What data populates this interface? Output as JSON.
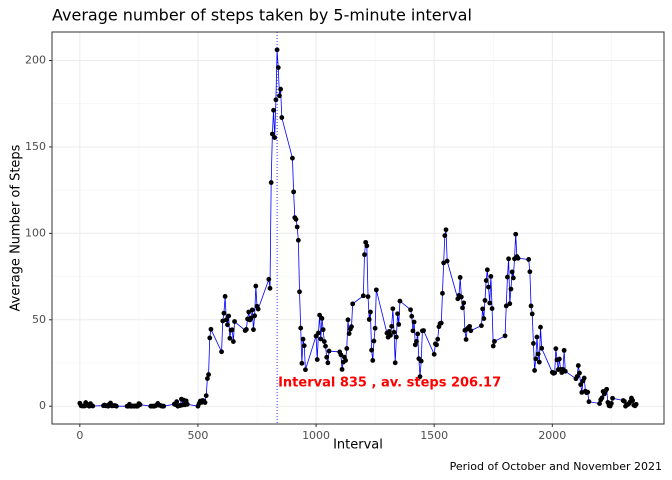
{
  "chart_data": {
    "type": "line",
    "title": "Average number of steps taken by 5-minute interval",
    "x_label": "Interval",
    "y_label": "Average Number of Steps",
    "caption": "Period of October and November 2021",
    "annotation": "Interval 835 , av. steps  206.17",
    "vline_x": 835,
    "vline_color": "#0000ff",
    "annotation_color": "#ff0000",
    "line_color": "#0000ff",
    "point_color": "#000000",
    "grid": true,
    "xlim": [
      -117.75,
      2472.75
    ],
    "ylim": [
      -10.3,
      216.5
    ],
    "xticks": [
      0,
      500,
      1000,
      1500,
      2000
    ],
    "yticks": [
      0,
      50,
      100,
      150,
      200
    ],
    "x": [
      0,
      5,
      10,
      15,
      20,
      25,
      30,
      35,
      40,
      45,
      50,
      55,
      100,
      105,
      110,
      115,
      120,
      125,
      130,
      135,
      140,
      145,
      150,
      155,
      200,
      205,
      210,
      215,
      220,
      225,
      230,
      235,
      240,
      245,
      250,
      255,
      300,
      305,
      310,
      315,
      320,
      325,
      330,
      335,
      340,
      345,
      350,
      355,
      400,
      405,
      410,
      415,
      420,
      425,
      430,
      435,
      440,
      445,
      450,
      455,
      500,
      505,
      510,
      515,
      520,
      525,
      530,
      535,
      540,
      545,
      550,
      555,
      600,
      605,
      610,
      615,
      620,
      625,
      630,
      635,
      640,
      645,
      650,
      655,
      700,
      705,
      710,
      715,
      720,
      725,
      730,
      735,
      740,
      745,
      750,
      755,
      800,
      805,
      810,
      815,
      820,
      825,
      830,
      835,
      840,
      845,
      850,
      855,
      900,
      905,
      910,
      915,
      920,
      925,
      930,
      935,
      940,
      945,
      950,
      955,
      1000,
      1005,
      1010,
      1015,
      1020,
      1025,
      1030,
      1035,
      1040,
      1045,
      1050,
      1055,
      1100,
      1105,
      1110,
      1115,
      1120,
      1125,
      1130,
      1135,
      1140,
      1145,
      1150,
      1155,
      1200,
      1205,
      1210,
      1215,
      1220,
      1225,
      1230,
      1235,
      1240,
      1245,
      1250,
      1255,
      1300,
      1305,
      1310,
      1315,
      1320,
      1325,
      1330,
      1335,
      1340,
      1345,
      1350,
      1355,
      1400,
      1405,
      1410,
      1415,
      1420,
      1425,
      1430,
      1435,
      1440,
      1445,
      1450,
      1455,
      1500,
      1505,
      1510,
      1515,
      1520,
      1525,
      1530,
      1535,
      1540,
      1545,
      1550,
      1555,
      1600,
      1605,
      1610,
      1615,
      1620,
      1625,
      1630,
      1635,
      1640,
      1645,
      1650,
      1655,
      1700,
      1705,
      1710,
      1715,
      1720,
      1725,
      1730,
      1735,
      1740,
      1745,
      1750,
      1755,
      1800,
      1805,
      1810,
      1815,
      1820,
      1825,
      1830,
      1835,
      1840,
      1845,
      1850,
      1855,
      1900,
      1905,
      1910,
      1915,
      1920,
      1925,
      1930,
      1935,
      1940,
      1945,
      1950,
      1955,
      2000,
      2005,
      2010,
      2015,
      2020,
      2025,
      2030,
      2035,
      2040,
      2045,
      2050,
      2055,
      2100,
      2105,
      2110,
      2115,
      2120,
      2125,
      2130,
      2135,
      2140,
      2145,
      2150,
      2155,
      2200,
      2205,
      2210,
      2215,
      2220,
      2225,
      2230,
      2235,
      2240,
      2245,
      2250,
      2255,
      2300,
      2305,
      2310,
      2315,
      2320,
      2325,
      2330,
      2335,
      2340,
      2345,
      2350,
      2355
    ],
    "values": [
      1.7,
      0.3,
      0.1,
      0.2,
      0.1,
      2.1,
      0.5,
      0.9,
      0,
      1.5,
      0.3,
      0.1,
      0.3,
      0.7,
      0.2,
      0.3,
      0,
      1.1,
      1.8,
      0.2,
      0.2,
      0.4,
      0.3,
      0,
      0,
      0,
      1.1,
      0,
      0,
      0.1,
      0,
      0.2,
      0,
      0,
      1.5,
      0.9,
      0,
      0,
      0,
      0,
      0.2,
      0.6,
      1.6,
      0.6,
      0.5,
      0.1,
      0,
      0,
      1.2,
      0.9,
      2.6,
      0,
      0.3,
      0.4,
      4.1,
      0.7,
      3.5,
      0.8,
      3.1,
      1.1,
      0,
      1.6,
      3,
      2.2,
      3.3,
      3,
      2.1,
      6.1,
      16,
      18.3,
      39.5,
      44.5,
      31.5,
      49.3,
      53.8,
      63.5,
      50,
      47.1,
      52.2,
      39.3,
      44,
      44.2,
      37.4,
      49,
      43.8,
      44.4,
      50.5,
      54.5,
      49.9,
      51,
      55.7,
      44.3,
      52.3,
      69.5,
      57.8,
      56.2,
      73.4,
      68.2,
      129.4,
      157.5,
      171.2,
      155.4,
      177.3,
      206.17,
      195.9,
      179.6,
      183.4,
      167,
      143.5,
      124,
      109.1,
      108.1,
      103.7,
      96,
      66.2,
      45.2,
      24.8,
      38.8,
      35,
      21.1,
      40.6,
      27,
      42.4,
      52.7,
      38.9,
      50.8,
      44.3,
      37.4,
      34.7,
      28.3,
      25.1,
      31.9,
      31.4,
      29.7,
      21.3,
      25.5,
      28.4,
      26.5,
      33.4,
      50,
      42,
      44.6,
      46,
      59.2,
      63.9,
      87.7,
      94.8,
      92.8,
      63.4,
      50.2,
      54.5,
      32.4,
      26.5,
      37.7,
      45.1,
      67.3,
      42.3,
      39.9,
      43.3,
      41,
      46.2,
      56.4,
      42.8,
      25.1,
      40,
      53.5,
      47.3,
      60.8,
      55.8,
      52,
      43.6,
      48.7,
      35.5,
      37.5,
      41.8,
      27.5,
      17.1,
      26.1,
      43.6,
      43.8,
      30,
      36.1,
      35.5,
      38.8,
      46,
      47.8,
      48.1,
      65.3,
      82.9,
      98.7,
      102.1,
      84,
      62.1,
      64.1,
      74.5,
      63.2,
      56.9,
      59.8,
      43.9,
      38.6,
      44.7,
      45.5,
      46.2,
      43.7,
      46.6,
      56.3,
      50.7,
      61.2,
      72.7,
      78.9,
      68.9,
      59.7,
      75.1,
      56.5,
      34.8,
      37.5,
      40.7,
      58,
      74.7,
      85.3,
      59.3,
      67.8,
      77.7,
      74.2,
      85.3,
      99.5,
      86.6,
      85.6,
      84.9,
      77.8,
      58,
      53.4,
      36.3,
      20.7,
      27.4,
      40,
      30.2,
      25.5,
      45.7,
      33.5,
      19.6,
      19,
      19.3,
      33.3,
      26.8,
      21.2,
      27.3,
      21.3,
      19.5,
      21.3,
      32.3,
      20.2,
      15.9,
      17.2,
      23.5,
      19.2,
      12.5,
      8,
      14.7,
      16.3,
      8.7,
      7.8,
      8.1,
      2.6,
      1.5,
      3.7,
      4.8,
      8.5,
      7.1,
      8.7,
      9.8,
      2.2,
      0.3,
      0.1,
      1.6,
      4.6,
      3.3,
      2.8,
      0,
      0.8,
      1,
      1.6,
      2.6,
      4.7,
      3.3,
      0.6,
      0.2,
      1.1
    ]
  }
}
